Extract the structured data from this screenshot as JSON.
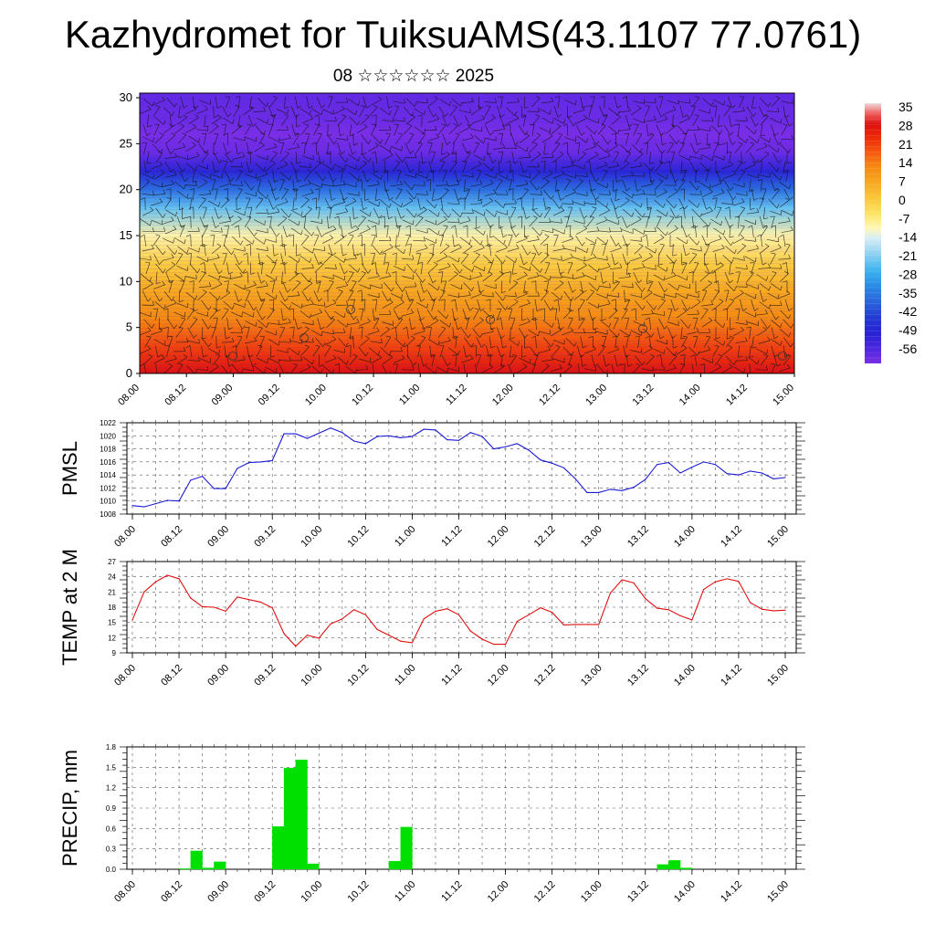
{
  "title": "Kazhydromet for TuiksuAMS(43.1107 77.0761)",
  "subtitle": "08 ☆☆☆☆☆☆ 2025",
  "colors": {
    "pmsl_line": "#1a1ad6",
    "temp_line": "#e01010",
    "precip_bar": "#00e000"
  },
  "chart_data": [
    {
      "type": "heatmap",
      "name": "upper-air",
      "xlabel": "",
      "ylabel": "",
      "x_ticks": [
        "08.00",
        "08.12",
        "09.00",
        "09.12",
        "10.00",
        "10.12",
        "11.00",
        "11.12",
        "12.00",
        "12.12",
        "13.00",
        "13.12",
        "14.00",
        "14.12",
        "15.00"
      ],
      "y_ticks": [
        0,
        5,
        10,
        15,
        20,
        25,
        30
      ],
      "ylim": [
        0,
        30.5
      ],
      "colorbar_labels": [
        "35",
        "28",
        "21",
        "14",
        "7",
        "0",
        "-7",
        "-14",
        "-21",
        "-28",
        "-35",
        "-42",
        "-49",
        "-56"
      ],
      "colorbar_range": [
        -60,
        38
      ],
      "overlay": "wind barbs",
      "temperature_profile": {
        "height": [
          0,
          3,
          6,
          9,
          12,
          15,
          18,
          20,
          22,
          24,
          26,
          28,
          30.5
        ],
        "value": [
          30,
          22,
          14,
          8,
          1,
          -8,
          -22,
          -35,
          -48,
          -58,
          -60,
          -58,
          -57
        ]
      }
    },
    {
      "type": "line",
      "name": "pmsl",
      "ylabel": "PMSL",
      "ylim": [
        1008,
        1022
      ],
      "y_ticks": [
        1008,
        1010,
        1012,
        1014,
        1016,
        1018,
        1020,
        1022
      ],
      "x_ticks": [
        "08.00",
        "08.12",
        "09.00",
        "09.12",
        "10.00",
        "10.12",
        "11.00",
        "11.12",
        "12.00",
        "12.12",
        "13.00",
        "13.12",
        "14.00",
        "14.12",
        "15.00"
      ],
      "x_hours": [
        0,
        3,
        6,
        9,
        12,
        15,
        18,
        21,
        24,
        27,
        30,
        33,
        36,
        39,
        42,
        45,
        48,
        51,
        54,
        57,
        60,
        63,
        66,
        69,
        72,
        75,
        78,
        81,
        84,
        87,
        90,
        93,
        96,
        99,
        102,
        105,
        108,
        111,
        114,
        117,
        120,
        123,
        126,
        129,
        132,
        135,
        138,
        141,
        144,
        147,
        150,
        153,
        156,
        159,
        162,
        165,
        168
      ],
      "values": [
        1009.3,
        1009.1,
        1009.6,
        1010.1,
        1010.0,
        1013.2,
        1013.8,
        1011.9,
        1011.9,
        1015.0,
        1015.9,
        1016.0,
        1016.2,
        1020.3,
        1020.3,
        1019.6,
        1020.4,
        1021.2,
        1020.5,
        1019.2,
        1018.8,
        1019.9,
        1020.0,
        1019.7,
        1019.9,
        1021.0,
        1020.9,
        1019.4,
        1019.3,
        1020.5,
        1019.9,
        1018.0,
        1018.3,
        1018.8,
        1017.8,
        1016.3,
        1015.8,
        1015.1,
        1013.4,
        1011.3,
        1011.3,
        1011.8,
        1011.6,
        1012.1,
        1013.3,
        1015.6,
        1015.9,
        1014.3,
        1015.2,
        1016.0,
        1015.6,
        1014.2,
        1014.0,
        1014.6,
        1014.3,
        1013.4,
        1013.6
      ]
    },
    {
      "type": "line",
      "name": "temp",
      "ylabel": "TEMP at 2 M",
      "ylim": [
        9,
        27
      ],
      "y_ticks": [
        9,
        12,
        15,
        18,
        21,
        24,
        27
      ],
      "x_ticks": [
        "08.00",
        "08.12",
        "09.00",
        "09.12",
        "10.00",
        "10.12",
        "11.00",
        "11.12",
        "12.00",
        "12.12",
        "13.00",
        "13.12",
        "14.00",
        "14.12",
        "15.00"
      ],
      "x_hours": [
        0,
        3,
        6,
        9,
        12,
        15,
        18,
        21,
        24,
        27,
        30,
        33,
        36,
        39,
        42,
        45,
        48,
        51,
        54,
        57,
        60,
        63,
        66,
        69,
        72,
        75,
        78,
        81,
        84,
        87,
        90,
        93,
        96,
        99,
        102,
        105,
        108,
        111,
        114,
        117,
        120,
        123,
        126,
        129,
        132,
        135,
        138,
        141,
        144,
        147,
        150,
        153,
        156,
        159,
        162,
        165,
        168
      ],
      "values": [
        15.5,
        21.0,
        23.0,
        24.3,
        23.6,
        19.8,
        18.1,
        18.0,
        17.2,
        20.0,
        19.5,
        19.0,
        17.9,
        12.8,
        10.3,
        12.5,
        11.9,
        14.7,
        15.7,
        17.5,
        16.5,
        13.6,
        12.5,
        11.3,
        11.0,
        15.7,
        17.2,
        17.7,
        16.5,
        13.3,
        11.7,
        10.7,
        10.7,
        15.2,
        16.5,
        17.9,
        17.0,
        14.5,
        14.6,
        14.6,
        14.6,
        20.8,
        23.4,
        22.8,
        19.7,
        17.8,
        17.5,
        16.3,
        15.5,
        21.5,
        23.0,
        23.6,
        23.1,
        18.9,
        17.6,
        17.3,
        17.4
      ]
    },
    {
      "type": "bar",
      "name": "precip",
      "ylabel": "PRECIP, mm",
      "ylim": [
        0,
        1.8
      ],
      "y_ticks": [
        "0.0",
        "0.3",
        "0.6",
        "0.9",
        "1.2",
        "1.5",
        "1.8"
      ],
      "x_ticks": [
        "08.00",
        "08.12",
        "09.00",
        "09.12",
        "10.00",
        "10.12",
        "11.00",
        "11.12",
        "12.00",
        "12.12",
        "13.00",
        "13.12",
        "14.00",
        "14.12",
        "15.00"
      ],
      "x_hours": [
        15,
        18,
        21,
        24,
        39,
        42,
        45,
        48,
        51,
        69,
        72,
        138,
        141,
        144
      ],
      "values": [
        0.01,
        0.27,
        0.02,
        0.11,
        0.63,
        1.49,
        1.61,
        0.08,
        0.0,
        0.12,
        0.62,
        0.07,
        0.13,
        0.02
      ]
    }
  ]
}
